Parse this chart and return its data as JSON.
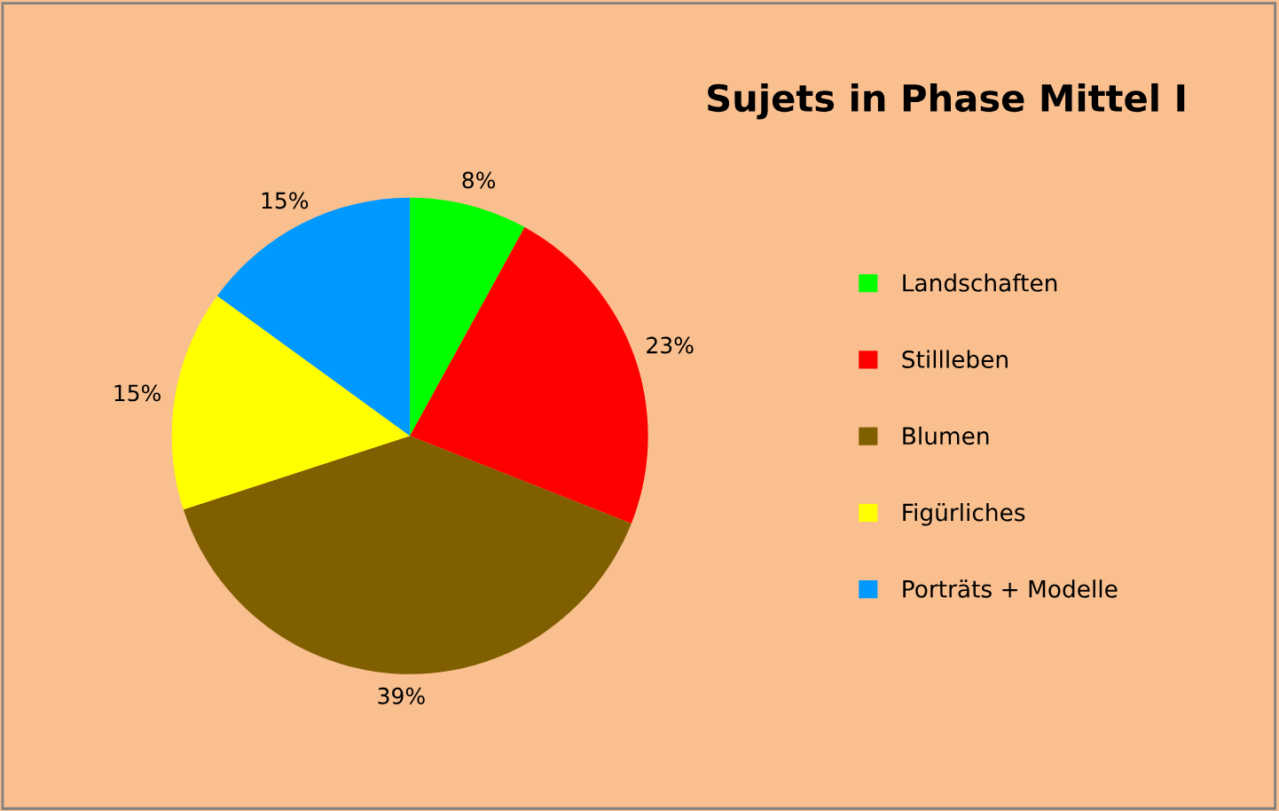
{
  "chart_data": {
    "type": "pie",
    "title": "Sujets in Phase Mittel I",
    "categories": [
      "Landschaften",
      "Stillleben",
      "Blumen",
      "Figürliches",
      "Porträts + Modelle"
    ],
    "values": [
      8,
      23,
      39,
      15,
      15
    ],
    "colors": [
      "#00ff00",
      "#ff0000",
      "#7f5f00",
      "#ffff00",
      "#0099ff"
    ],
    "value_labels": [
      "8%",
      "23%",
      "39%",
      "15%",
      "15%"
    ],
    "legend": "right"
  }
}
